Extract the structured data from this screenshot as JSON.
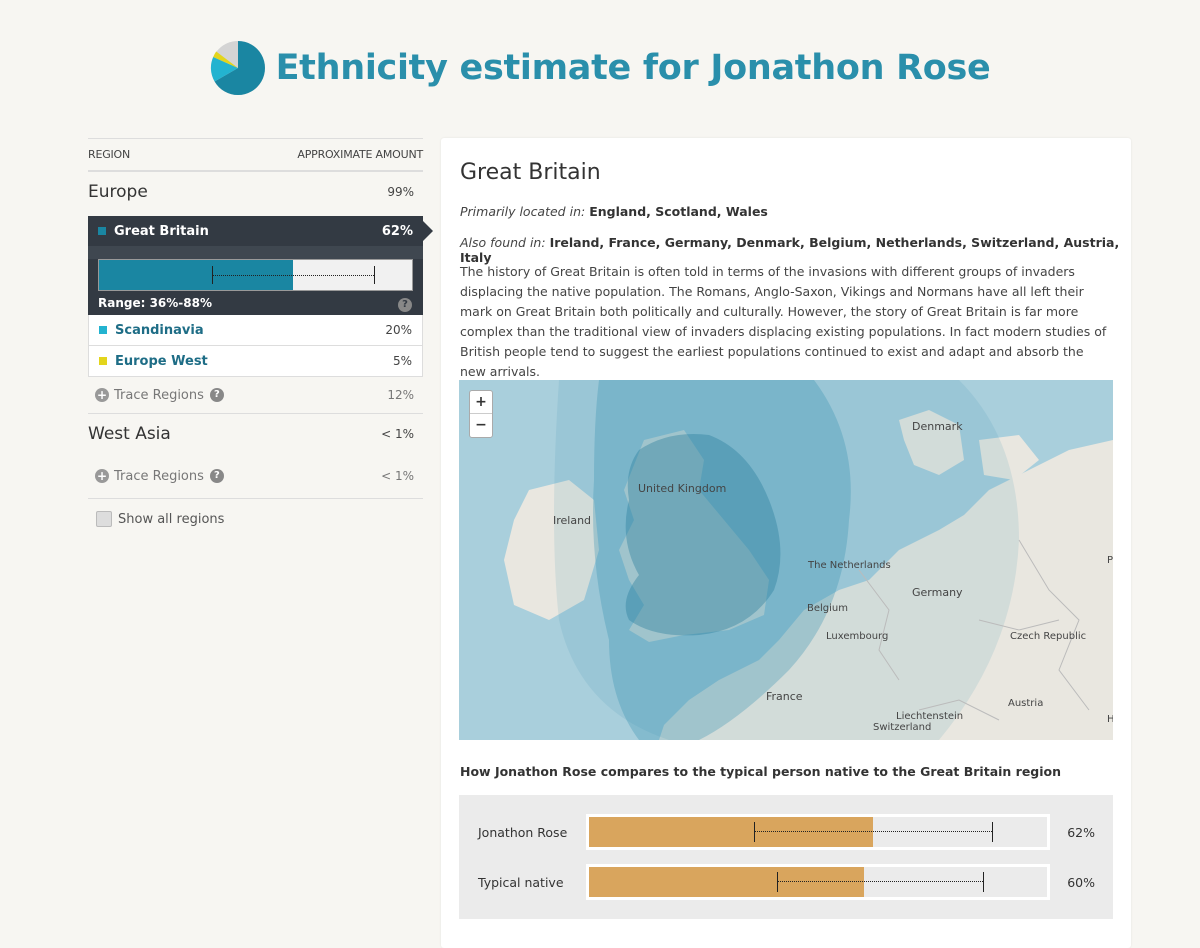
{
  "header": {
    "title": "Ethnicity estimate for Jonathon Rose",
    "icon": "pie-chart-icon"
  },
  "colors": {
    "accent": "#2a8fab",
    "great_britain": "#1a86a2",
    "scandinavia": "#23b3d0",
    "europe_west": "#e3d51c",
    "compare": "#d9a55d"
  },
  "left": {
    "col_region": "REGION",
    "col_amount": "APPROXIMATE AMOUNT",
    "europe": {
      "name": "Europe",
      "pct": "99%",
      "selected": {
        "name": "Great Britain",
        "pct": "62%",
        "value": 62,
        "range_low": 36,
        "range_high": 88,
        "range_label": "Range: 36%-88%",
        "help": "?"
      },
      "items": [
        {
          "name": "Scandinavia",
          "pct": "20%"
        },
        {
          "name": "Europe West",
          "pct": "5%"
        }
      ],
      "trace": {
        "label": "Trace Regions",
        "pct": "12%"
      }
    },
    "west_asia": {
      "name": "West Asia",
      "pct": "< 1%",
      "trace": {
        "label": "Trace Regions",
        "pct": "< 1%"
      }
    },
    "show_all": "Show all regions"
  },
  "detail": {
    "title": "Great Britain",
    "primary_label": "Primarily located in:",
    "primary_value": "England, Scotland, Wales",
    "also_label": "Also found in:",
    "also_value": "Ireland, France, Germany, Denmark, Belgium, Netherlands, Switzerland, Austria, Italy",
    "description": "The history of Great Britain is often told in terms of the invasions with different groups of invaders displacing the native population. The Romans, Anglo-Saxon, Vikings and Normans have all left their mark on Great Britain both politically and culturally. However, the story of Great Britain is far more complex than the traditional view of invaders displacing existing populations. In fact modern studies of British people tend to suggest the earliest populations continued to exist and adapt and absorb the new arrivals.",
    "map": {
      "zoom_in": "+",
      "zoom_out": "−",
      "labels": {
        "denmark": "Denmark",
        "uk": "United Kingdom",
        "ireland": "Ireland",
        "netherlands": "The Netherlands",
        "germany": "Germany",
        "belgium": "Belgium",
        "luxembourg": "Luxembourg",
        "czech": "Czech Republic",
        "france": "France",
        "austria": "Austria",
        "liechtenstein": "Liechtenstein",
        "switzerland": "Switzerland",
        "edge_p": "P",
        "edge_h": "H"
      }
    },
    "compare_title": "How Jonathon Rose compares to the typical person native to the Great Britain region",
    "compare": [
      {
        "label": "Jonathon Rose",
        "pct": "62%",
        "value": 62,
        "range_low": 36,
        "range_high": 88
      },
      {
        "label": "Typical native",
        "pct": "60%",
        "value": 60,
        "range_low": 41,
        "range_high": 86
      }
    ]
  }
}
